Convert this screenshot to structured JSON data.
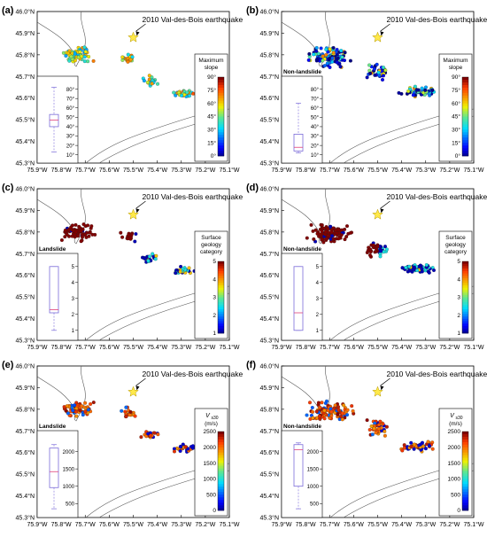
{
  "figure": {
    "event_label": "2010 Val-des-Bois earthquake",
    "lat_ticks": [
      "46.0°N",
      "45.9°N",
      "45.8°N",
      "45.7°N",
      "45.6°N",
      "45.5°N",
      "45.4°N",
      "45.3°N"
    ],
    "lon_ticks": [
      "75.9°W",
      "75.8°W",
      "75.7°W",
      "75.6°W",
      "75.5°W",
      "75.4°W",
      "75.3°W",
      "75.2°W",
      "75.1°W"
    ],
    "lon_range": [
      -75.9,
      -75.1
    ],
    "lat_range": [
      45.3,
      46.0
    ],
    "epicenter": {
      "lon": -75.5,
      "lat": 45.88
    }
  },
  "panels": [
    {
      "letter": "(a)",
      "variable": "slope",
      "inset_title": "",
      "legend": {
        "title_lines": [
          "Maximum",
          "slope"
        ],
        "ticks": [
          "90°",
          "75°",
          "60°",
          "45°",
          "30°",
          "15°",
          "0°"
        ],
        "min": 0,
        "max": 90
      },
      "box": {
        "ticks": [
          "80°",
          "70°",
          "60°",
          "50°",
          "40°",
          "30°",
          "20°",
          "10°"
        ],
        "tick_values": [
          80,
          70,
          60,
          50,
          40,
          30,
          20,
          10
        ],
        "min": 5,
        "max": 90,
        "whisker_low": 13,
        "q1": 40,
        "median": 47,
        "q3": 53,
        "whisker_high": 82
      }
    },
    {
      "letter": "(b)",
      "variable": "slope",
      "inset_title": "Non-landslide",
      "legend": {
        "title_lines": [
          "Maximum",
          "slope"
        ],
        "ticks": [
          "90°",
          "75°",
          "60°",
          "45°",
          "30°",
          "15°",
          "0°"
        ],
        "min": 0,
        "max": 90
      },
      "box": {
        "ticks": [
          "80°",
          "70°",
          "60°",
          "50°",
          "40°",
          "30°",
          "20°",
          "10°"
        ],
        "tick_values": [
          80,
          70,
          60,
          50,
          40,
          30,
          20,
          10
        ],
        "min": 5,
        "max": 90,
        "whisker_low": 12,
        "q1": 14,
        "median": 18,
        "q3": 32,
        "whisker_high": 65
      }
    },
    {
      "letter": "(c)",
      "variable": "geology",
      "inset_title": "Landslide",
      "legend": {
        "title_lines": [
          "Surface",
          "geology",
          "category"
        ],
        "ticks": [
          "5",
          "4",
          "3",
          "2",
          "1"
        ],
        "min": 1,
        "max": 5
      },
      "box": {
        "ticks": [
          "5",
          "4",
          "3",
          "2",
          "1"
        ],
        "tick_values": [
          5,
          4,
          3,
          2,
          1
        ],
        "min": 0.6,
        "max": 5.6,
        "whisker_low": 1,
        "q1": 2.1,
        "median": 2.3,
        "q3": 5,
        "whisker_high": 5
      }
    },
    {
      "letter": "(d)",
      "variable": "geology",
      "inset_title": "Non-landslide",
      "legend": {
        "title_lines": [
          "Surface",
          "geology",
          "category"
        ],
        "ticks": [
          "5",
          "4",
          "3",
          "2",
          "1"
        ],
        "min": 1,
        "max": 5
      },
      "box": {
        "ticks": [
          "5",
          "4",
          "3",
          "2",
          "1"
        ],
        "tick_values": [
          5,
          4,
          3,
          2,
          1
        ],
        "min": 0.6,
        "max": 5.6,
        "whisker_low": 1,
        "q1": 1,
        "median": 2.1,
        "q3": 5,
        "whisker_high": 5
      }
    },
    {
      "letter": "(e)",
      "variable": "vs30",
      "inset_title": "Landslide",
      "legend": {
        "title_main": "V",
        "title_sub": "s30",
        "title_units": "(m/s)",
        "ticks": [
          "2500",
          "2000",
          "1500",
          "1000",
          "500",
          "0"
        ],
        "min": 0,
        "max": 2500
      },
      "box": {
        "ticks": [
          "2000",
          "1500",
          "1000",
          "500"
        ],
        "tick_values": [
          2000,
          1500,
          1000,
          500
        ],
        "min": 200,
        "max": 2500,
        "whisker_low": 350,
        "q1": 960,
        "median": 1420,
        "q3": 2100,
        "whisker_high": 2200
      }
    },
    {
      "letter": "(f)",
      "variable": "vs30",
      "inset_title": "Non-landslide",
      "legend": {
        "title_main": "V",
        "title_sub": "s30",
        "title_units": "(m/s)",
        "ticks": [
          "2500",
          "2000",
          "1500",
          "1000",
          "500",
          "0"
        ],
        "min": 0,
        "max": 2500
      },
      "box": {
        "ticks": [
          "2000",
          "1500",
          "1000",
          "500"
        ],
        "tick_values": [
          2000,
          1500,
          1000,
          500
        ],
        "min": 200,
        "max": 2500,
        "whisker_low": 350,
        "q1": 1000,
        "median": 2050,
        "q3": 2200,
        "whisker_high": 2250
      }
    }
  ]
}
